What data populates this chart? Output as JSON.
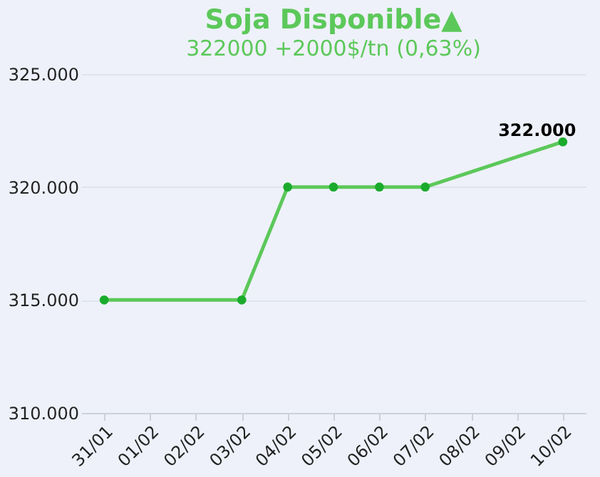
{
  "chart_data": {
    "type": "line",
    "title": "Soja Disponible▲",
    "subtitle": "322000 +2000$/tn (0,63%)",
    "categories": [
      "31/01",
      "01/02",
      "02/02",
      "03/02",
      "04/02",
      "05/02",
      "06/02",
      "07/02",
      "08/02",
      "09/02",
      "10/02"
    ],
    "series": [
      {
        "color": "#5cc85a",
        "values": [
          315000,
          null,
          null,
          315000,
          320000,
          320000,
          320000,
          320000,
          null,
          null,
          322000
        ]
      }
    ],
    "value_labels": [
      null,
      null,
      null,
      null,
      null,
      null,
      null,
      null,
      null,
      null,
      "322.000"
    ],
    "ylim": [
      310000,
      325000
    ],
    "yticks": [
      {
        "value": 310000,
        "label": "310.000"
      },
      {
        "value": 315000,
        "label": "315.000"
      },
      {
        "value": 320000,
        "label": "320.000"
      },
      {
        "value": 325000,
        "label": "325.000"
      }
    ],
    "grid": "y",
    "marker": "circle",
    "line_style": "solid"
  }
}
